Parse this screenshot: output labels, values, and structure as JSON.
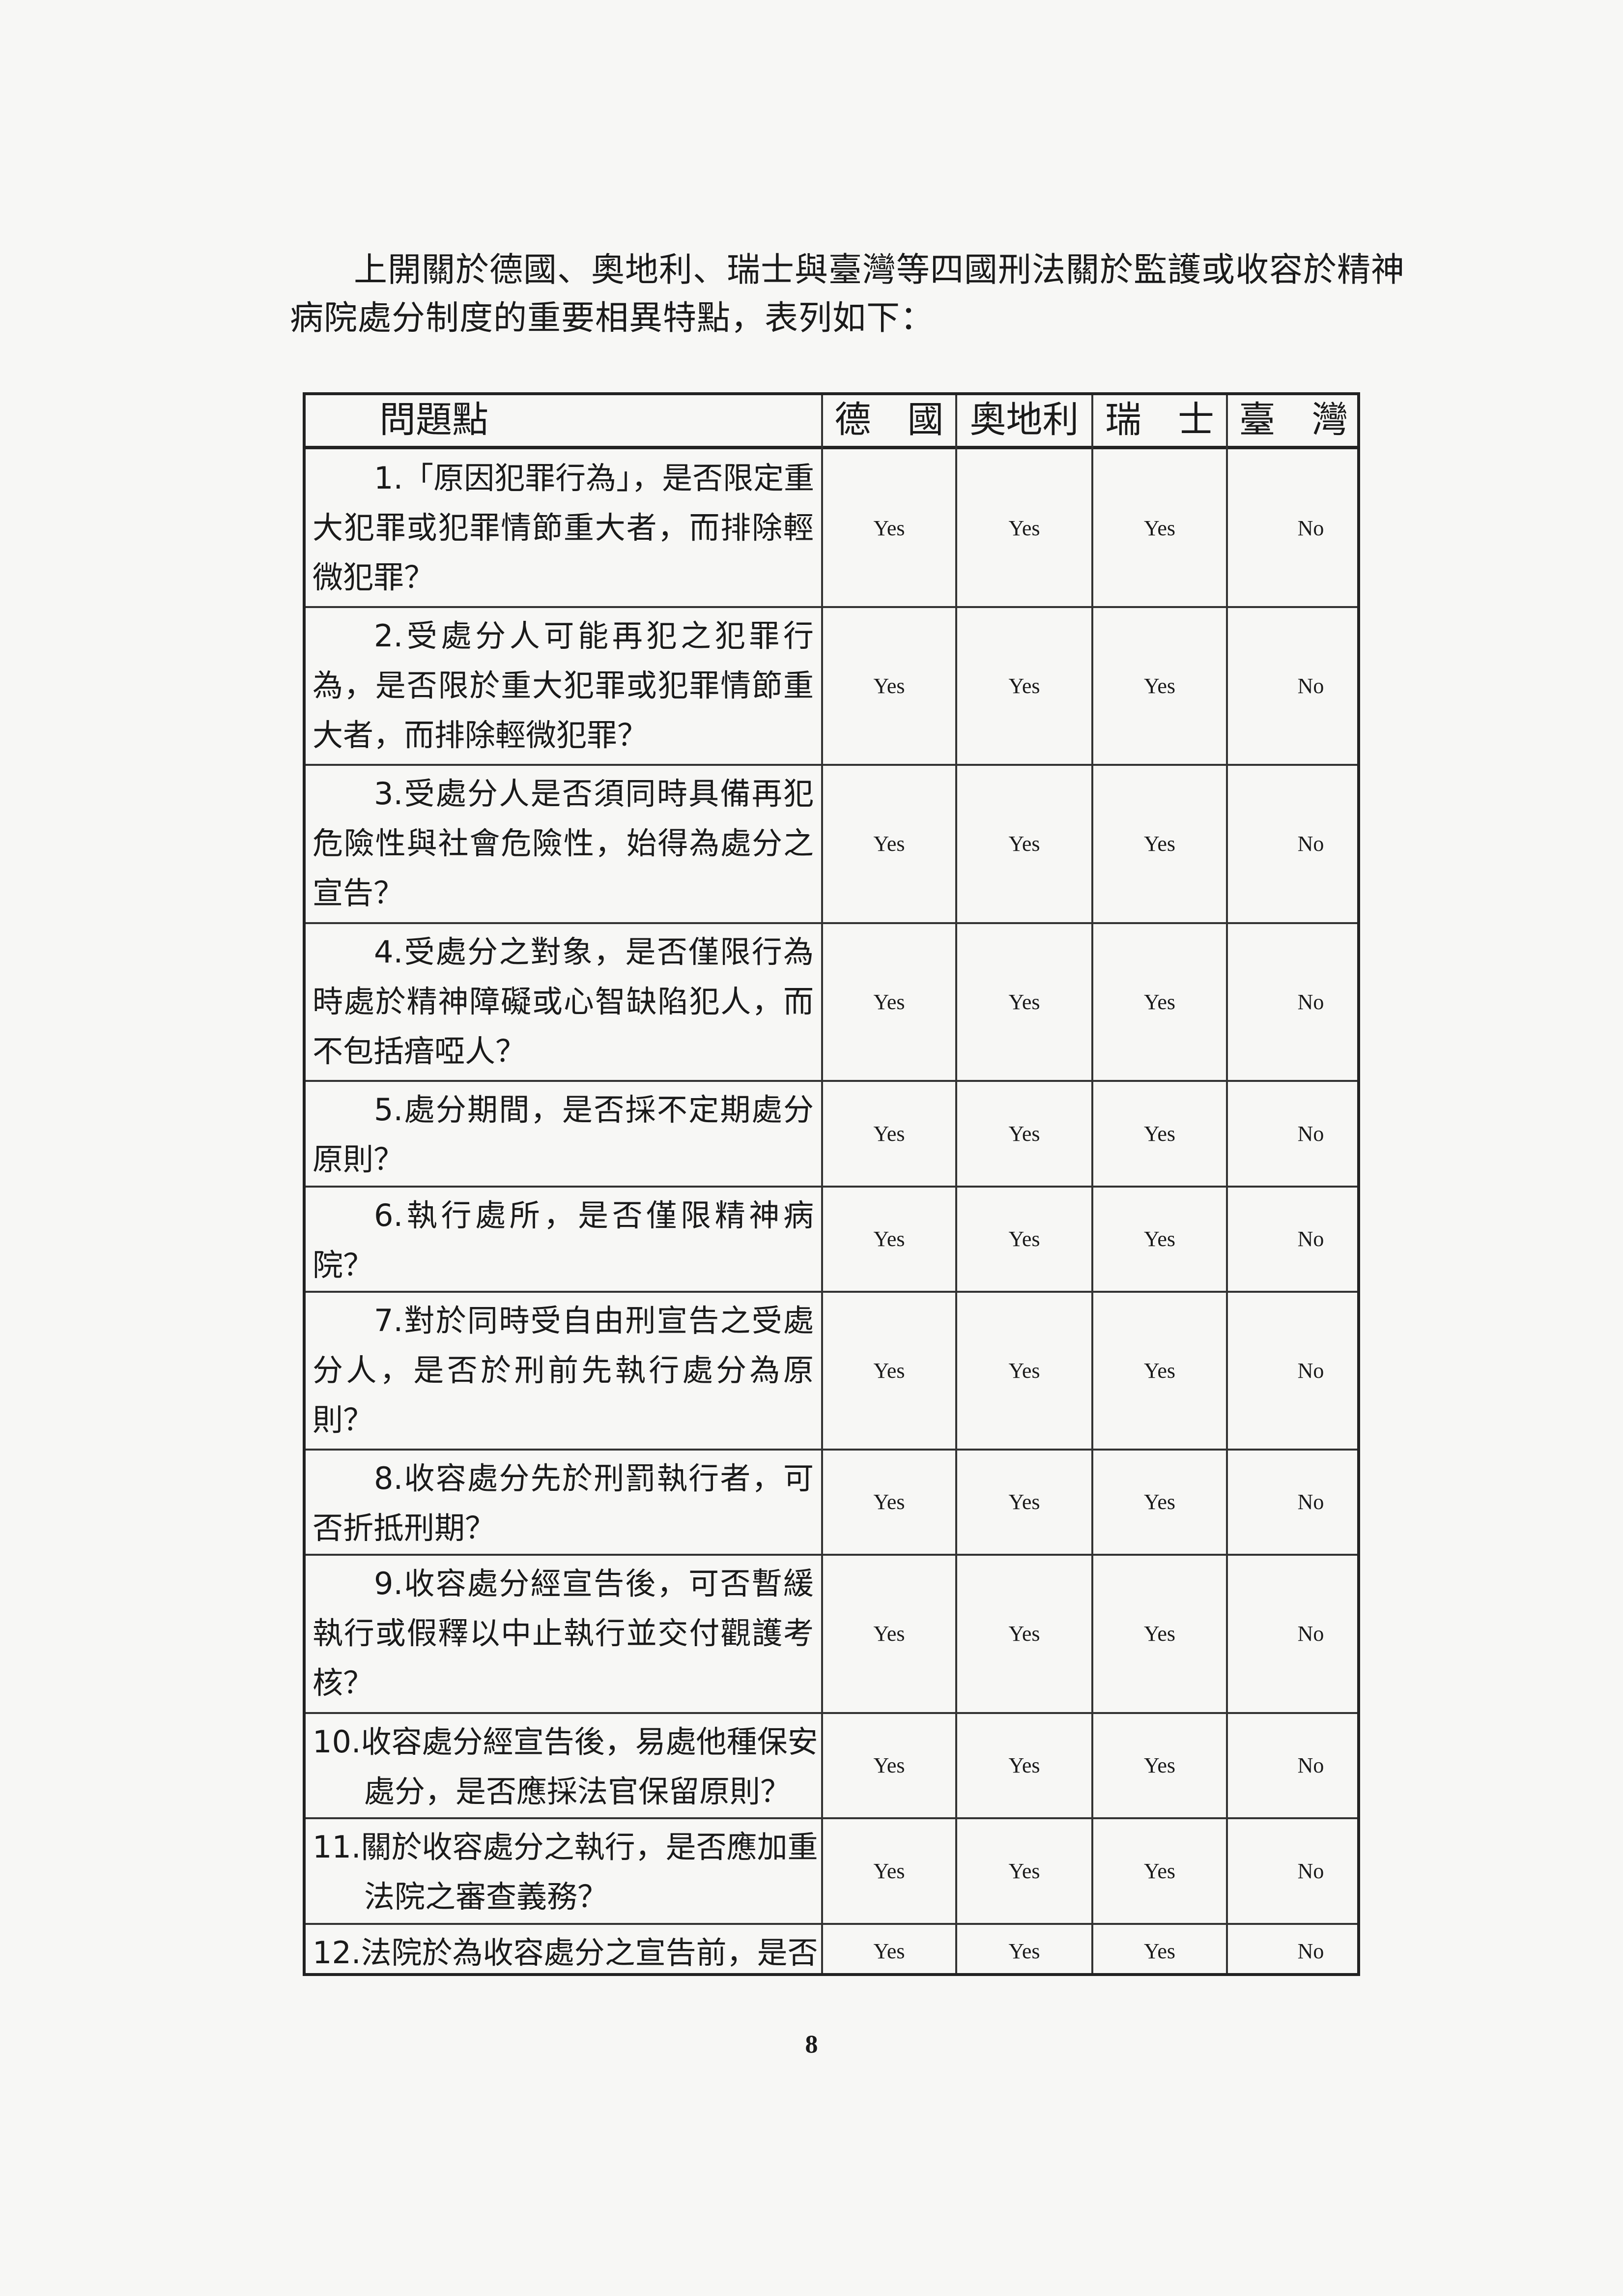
{
  "intro": {
    "line1": "上開關於德國、奧地利、瑞士與臺灣等四國刑法關於監護或收容於精神",
    "line2": "病院處分制度的重要相異特點，表列如下："
  },
  "table": {
    "headers": [
      "問題點",
      "德　國",
      "奧地利",
      "瑞　士",
      "臺　灣"
    ],
    "rows": [
      {
        "lines": [
          "1.「原因犯罪行為」，是否限定重",
          "大犯罪或犯罪情節重大者，而排除輕",
          "微犯罪？"
        ],
        "answers": [
          "Yes",
          "Yes",
          "Yes",
          "No"
        ]
      },
      {
        "lines": [
          "2.受處分人可能再犯之犯罪行",
          "為，是否限於重大犯罪或犯罪情節重",
          "大者，而排除輕微犯罪？"
        ],
        "answers": [
          "Yes",
          "Yes",
          "Yes",
          "No"
        ]
      },
      {
        "lines": [
          "3.受處分人是否須同時具備再犯",
          "危險性與社會危險性，始得為處分之",
          "宣告？"
        ],
        "answers": [
          "Yes",
          "Yes",
          "Yes",
          "No"
        ]
      },
      {
        "lines": [
          "4.受處分之對象，是否僅限行為",
          "時處於精神障礙或心智缺陷犯人，而",
          "不包括瘖啞人？"
        ],
        "answers": [
          "Yes",
          "Yes",
          "Yes",
          "No"
        ]
      },
      {
        "lines": [
          "5.處分期間，是否採不定期處分",
          "原則？"
        ],
        "answers": [
          "Yes",
          "Yes",
          "Yes",
          "No"
        ]
      },
      {
        "lines": [
          "6.執行處所，是否僅限精神病",
          "院？"
        ],
        "answers": [
          "Yes",
          "Yes",
          "Yes",
          "No"
        ]
      },
      {
        "lines": [
          "7.對於同時受自由刑宣告之受處",
          "分人，是否於刑前先執行處分為原",
          "則？"
        ],
        "answers": [
          "Yes",
          "Yes",
          "Yes",
          "No"
        ]
      },
      {
        "lines": [
          "8.收容處分先於刑罰執行者，可",
          "否折抵刑期？"
        ],
        "answers": [
          "Yes",
          "Yes",
          "Yes",
          "No"
        ]
      },
      {
        "lines": [
          "9.收容處分經宣告後，可否暫緩",
          "執行或假釋以中止執行並交付觀護考",
          "核？"
        ],
        "answers": [
          "Yes",
          "Yes",
          "Yes",
          "No"
        ]
      },
      {
        "lines": [
          "10.收容處分經宣告後，易處他種保安",
          "處分，是否應採法官保留原則？"
        ],
        "answers": [
          "Yes",
          "Yes",
          "Yes",
          "No"
        ]
      },
      {
        "lines": [
          "11.關於收容處分之執行，是否應加重",
          "法院之審查義務？"
        ],
        "answers": [
          "Yes",
          "Yes",
          "Yes",
          "No"
        ]
      },
      {
        "lines": [
          "12.法院於為收容處分之宣告前，是否"
        ],
        "answers": [
          "Yes",
          "Yes",
          "Yes",
          "No"
        ]
      }
    ]
  },
  "page_number": "8"
}
